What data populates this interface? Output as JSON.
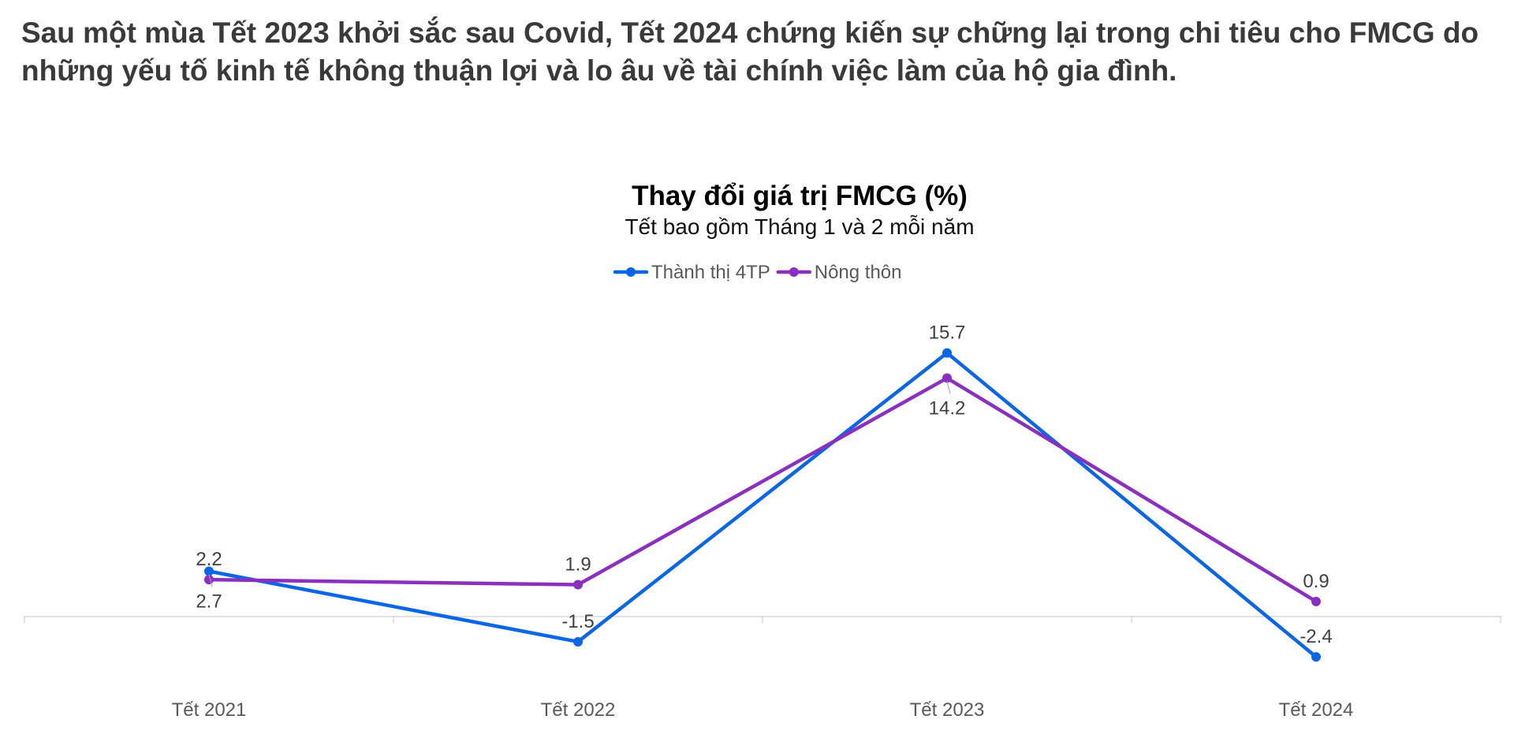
{
  "headline": "Sau một mùa Tết 2023 khởi sắc sau Covid, Tết 2024 chứng kiến sự chững lại trong chi tiêu cho FMCG do những yếu tố kinh tế không thuận lợi và lo âu về tài chính việc làm của hộ gia đình.",
  "chart_data": {
    "type": "line",
    "title": "Thay đổi giá trị FMCG (%)",
    "subtitle": "Tết bao gồm Tháng 1 và 2 mỗi năm",
    "categories": [
      "Tết 2021",
      "Tết 2022",
      "Tết 2023",
      "Tết 2024"
    ],
    "series": [
      {
        "name": "Thành thị 4TP",
        "color": "#0a66e8",
        "values": [
          2.7,
          -1.5,
          15.7,
          -2.4
        ],
        "label_position": [
          "below",
          "above",
          "above",
          "above"
        ]
      },
      {
        "name": "Nông thôn",
        "color": "#8a2fbf",
        "values": [
          2.2,
          1.9,
          14.2,
          0.9
        ],
        "label_position": [
          "above",
          "above",
          "below",
          "above"
        ]
      }
    ],
    "ylim": [
      -4,
      18
    ],
    "grid": false,
    "legend_position": "top-center",
    "xlabel": "",
    "ylabel": ""
  }
}
